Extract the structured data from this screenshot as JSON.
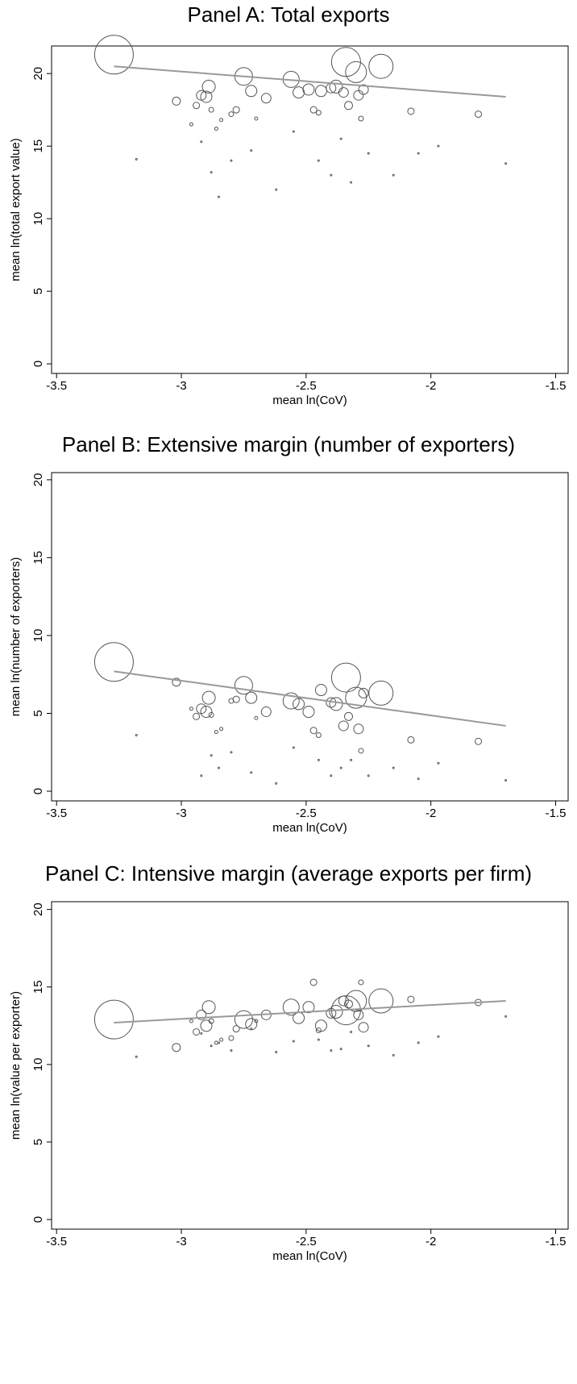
{
  "chart_data": [
    {
      "type": "scatter",
      "title": "Panel A: Total exports",
      "xlabel": "mean ln(CoV)",
      "ylabel": "mean ln(total export value)",
      "xlim": [
        -3.52,
        -1.45
      ],
      "ylim": [
        -0.66,
        21.9
      ],
      "xticks": [
        -3.5,
        -3,
        -2.5,
        -2,
        -1.5
      ],
      "yticks": [
        0,
        5,
        10,
        15,
        20
      ],
      "marker_color": "#555555",
      "fit_color": "#999999",
      "x": [
        -3.27,
        -3.18,
        -3.02,
        -2.96,
        -2.94,
        -2.92,
        -2.9,
        -2.89,
        -2.88,
        -2.86,
        -2.84,
        -2.8,
        -2.78,
        -2.75,
        -2.72,
        -2.7,
        -2.66,
        -2.56,
        -2.53,
        -2.49,
        -2.47,
        -2.45,
        -2.44,
        -2.4,
        -2.38,
        -2.34,
        -2.35,
        -2.33,
        -2.3,
        -2.29,
        -2.27,
        -2.28,
        -2.2,
        -2.08,
        -1.81,
        -1.7,
        -2.92,
        -2.88,
        -2.85,
        -2.8,
        -2.72,
        -2.62,
        -2.55,
        -2.45,
        -2.4,
        -2.36,
        -2.32,
        -2.25,
        -2.15,
        -2.05,
        -1.97
      ],
      "values": [
        21.3,
        14.1,
        18.1,
        16.5,
        17.8,
        18.5,
        18.4,
        19.1,
        17.5,
        16.2,
        16.8,
        17.2,
        17.5,
        19.8,
        18.8,
        16.9,
        18.3,
        19.6,
        18.7,
        18.9,
        17.5,
        17.3,
        18.8,
        19.0,
        19.1,
        20.8,
        18.7,
        17.8,
        20.1,
        18.5,
        18.9,
        16.9,
        20.5,
        17.4,
        17.2,
        13.8,
        15.3,
        13.2,
        11.5,
        14.0,
        14.7,
        12.0,
        16.0,
        14.0,
        13.0,
        15.5,
        12.5,
        14.5,
        13.0,
        14.5,
        15.0
      ],
      "sizes": [
        24,
        1,
        5,
        2,
        4,
        6,
        7,
        8,
        3,
        2,
        2,
        3,
        4,
        11,
        7,
        2,
        6,
        10,
        7,
        7,
        4,
        3,
        7,
        6,
        8,
        18,
        6,
        5,
        13,
        6,
        6,
        3,
        15,
        4,
        4,
        1,
        1,
        1,
        1,
        1,
        1,
        1,
        1,
        1,
        1,
        1,
        1,
        1,
        1,
        1,
        1
      ],
      "fit": {
        "x": [
          -3.27,
          -1.7
        ],
        "values": [
          20.5,
          18.4
        ]
      }
    },
    {
      "type": "scatter",
      "title": "Panel B: Extensive margin (number of exporters)",
      "xlabel": "mean ln(CoV)",
      "ylabel": "mean ln(number of exporters)",
      "xlim": [
        -3.52,
        -1.45
      ],
      "ylim": [
        -0.62,
        20.46
      ],
      "xticks": [
        -3.5,
        -3,
        -2.5,
        -2,
        -1.5
      ],
      "yticks": [
        0,
        5,
        10,
        15,
        20
      ],
      "marker_color": "#555555",
      "fit_color": "#999999",
      "x": [
        -3.27,
        -3.18,
        -3.02,
        -2.96,
        -2.94,
        -2.92,
        -2.9,
        -2.89,
        -2.88,
        -2.86,
        -2.84,
        -2.8,
        -2.78,
        -2.75,
        -2.72,
        -2.7,
        -2.66,
        -2.56,
        -2.53,
        -2.49,
        -2.47,
        -2.45,
        -2.44,
        -2.4,
        -2.38,
        -2.34,
        -2.35,
        -2.33,
        -2.3,
        -2.29,
        -2.27,
        -2.28,
        -2.2,
        -2.08,
        -1.81,
        -1.7,
        -2.92,
        -2.88,
        -2.85,
        -2.8,
        -2.72,
        -2.62,
        -2.55,
        -2.45,
        -2.4,
        -2.36,
        -2.32,
        -2.25,
        -2.15,
        -2.05,
        -1.97
      ],
      "values": [
        8.3,
        3.6,
        7.0,
        5.3,
        4.8,
        5.3,
        5.1,
        6.0,
        4.9,
        3.8,
        4.0,
        5.8,
        5.9,
        6.8,
        6.0,
        4.7,
        5.1,
        5.8,
        5.6,
        5.1,
        3.9,
        3.6,
        6.5,
        5.7,
        5.6,
        7.3,
        4.2,
        4.8,
        6.0,
        4.0,
        6.3,
        2.6,
        6.3,
        3.3,
        3.2,
        0.7,
        1.0,
        2.3,
        1.5,
        2.5,
        1.2,
        0.5,
        2.8,
        2.0,
        1.0,
        1.5,
        2.0,
        1.0,
        1.5,
        0.8,
        1.8
      ],
      "sizes": [
        24,
        1,
        5,
        2,
        4,
        6,
        7,
        8,
        3,
        2,
        2,
        3,
        4,
        11,
        7,
        2,
        6,
        10,
        7,
        7,
        4,
        3,
        7,
        6,
        8,
        18,
        6,
        5,
        13,
        6,
        6,
        3,
        15,
        4,
        4,
        1,
        1,
        1,
        1,
        1,
        1,
        1,
        1,
        1,
        1,
        1,
        1,
        1,
        1,
        1,
        1
      ],
      "fit": {
        "x": [
          -3.27,
          -1.7
        ],
        "values": [
          7.7,
          4.2
        ]
      }
    },
    {
      "type": "scatter",
      "title": "Panel C: Intensive margin (average exports per firm)",
      "xlabel": "mean ln(CoV)",
      "ylabel": "mean ln(value per exporter)",
      "xlim": [
        -3.52,
        -1.45
      ],
      "ylim": [
        -0.62,
        20.5
      ],
      "xticks": [
        -3.5,
        -3,
        -2.5,
        -2,
        -1.5
      ],
      "yticks": [
        0,
        5,
        10,
        15,
        20
      ],
      "marker_color": "#555555",
      "fit_color": "#999999",
      "x": [
        -3.27,
        -3.18,
        -3.02,
        -2.96,
        -2.94,
        -2.92,
        -2.9,
        -2.89,
        -2.88,
        -2.86,
        -2.84,
        -2.8,
        -2.78,
        -2.75,
        -2.72,
        -2.7,
        -2.66,
        -2.56,
        -2.53,
        -2.49,
        -2.47,
        -2.45,
        -2.44,
        -2.4,
        -2.38,
        -2.34,
        -2.35,
        -2.33,
        -2.3,
        -2.29,
        -2.27,
        -2.28,
        -2.2,
        -2.08,
        -1.81,
        -1.7,
        -2.92,
        -2.88,
        -2.85,
        -2.8,
        -2.72,
        -2.62,
        -2.55,
        -2.45,
        -2.4,
        -2.36,
        -2.32,
        -2.25,
        -2.15,
        -2.05,
        -1.97
      ],
      "values": [
        12.9,
        10.5,
        11.1,
        12.8,
        12.1,
        13.2,
        12.5,
        13.7,
        12.8,
        11.4,
        11.6,
        11.7,
        12.3,
        12.9,
        12.6,
        12.8,
        13.2,
        13.7,
        13.0,
        13.7,
        15.3,
        12.2,
        12.5,
        13.3,
        13.4,
        13.5,
        14.1,
        13.9,
        14.1,
        13.2,
        12.4,
        15.3,
        14.1,
        14.2,
        14.0,
        13.1,
        12.0,
        11.2,
        11.4,
        10.9,
        12.3,
        10.8,
        11.5,
        11.6,
        10.9,
        11.0,
        12.1,
        11.2,
        10.6,
        11.4,
        11.8
      ],
      "sizes": [
        24,
        1,
        5,
        2,
        4,
        6,
        7,
        8,
        3,
        2,
        2,
        3,
        4,
        11,
        7,
        2,
        6,
        10,
        7,
        7,
        4,
        3,
        7,
        6,
        8,
        18,
        6,
        5,
        13,
        6,
        6,
        3,
        15,
        4,
        4,
        1,
        1,
        1,
        1,
        1,
        1,
        1,
        1,
        1,
        1,
        1,
        1,
        1,
        1,
        1,
        1
      ],
      "fit": {
        "x": [
          -3.27,
          -1.7
        ],
        "values": [
          12.7,
          14.1
        ]
      }
    }
  ]
}
